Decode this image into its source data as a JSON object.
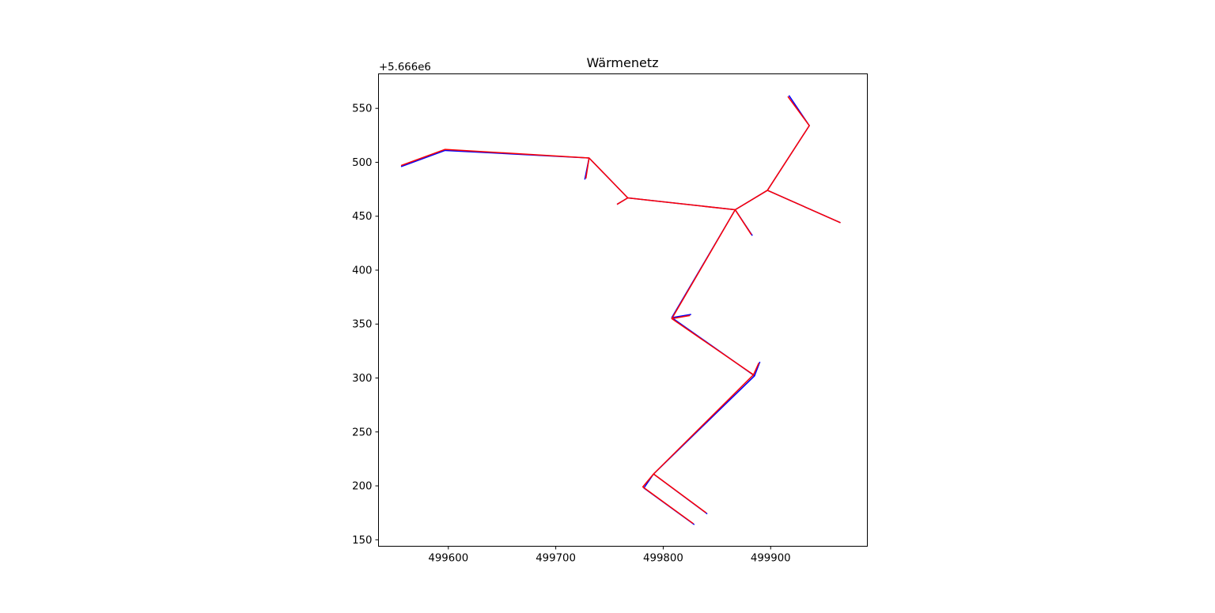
{
  "chart_data": {
    "type": "line",
    "title": "Wärmenetz",
    "xlabel": "",
    "ylabel": "",
    "y_offset_label": "+5.666e6",
    "xlim": [
      499535,
      499990
    ],
    "ylim": [
      144,
      582
    ],
    "x_ticks": [
      {
        "value": 499600,
        "label": "499600"
      },
      {
        "value": 499700,
        "label": "499700"
      },
      {
        "value": 499800,
        "label": "499800"
      },
      {
        "value": 499900,
        "label": "499900"
      }
    ],
    "y_ticks": [
      {
        "value": 150,
        "label": "150"
      },
      {
        "value": 200,
        "label": "200"
      },
      {
        "value": 250,
        "label": "250"
      },
      {
        "value": 300,
        "label": "300"
      },
      {
        "value": 350,
        "label": "350"
      },
      {
        "value": 400,
        "label": "400"
      },
      {
        "value": 450,
        "label": "450"
      },
      {
        "value": 500,
        "label": "500"
      },
      {
        "value": 550,
        "label": "550"
      }
    ],
    "grid": false,
    "series": [
      {
        "color": "#0000ff",
        "segments": [
          [
            [
              499556,
              496
            ],
            [
              499597,
              511
            ],
            [
              499731,
              504
            ],
            [
              499767,
              467
            ],
            [
              499867,
              456
            ]
          ],
          [
            [
              499731,
              504
            ],
            [
              499727,
              484
            ]
          ],
          [
            [
              499767,
              467
            ],
            [
              499757,
              461
            ]
          ],
          [
            [
              499867,
              456
            ],
            [
              499883,
              432
            ]
          ],
          [
            [
              499867,
              456
            ],
            [
              499897,
              474
            ],
            [
              499936,
              534
            ],
            [
              499917,
              562
            ]
          ],
          [
            [
              499897,
              474
            ],
            [
              499965,
              444
            ]
          ],
          [
            [
              499867,
              456
            ],
            [
              499808,
              356
            ],
            [
              499885,
              302
            ],
            [
              499791,
              211
            ],
            [
              499782,
              198
            ],
            [
              499829,
              164
            ]
          ],
          [
            [
              499808,
              356
            ],
            [
              499826,
              359
            ]
          ],
          [
            [
              499885,
              302
            ],
            [
              499890,
              315
            ]
          ],
          [
            [
              499791,
              211
            ],
            [
              499841,
              174
            ]
          ]
        ]
      },
      {
        "color": "#ff0000",
        "segments": [
          [
            [
              499556,
              497
            ],
            [
              499597,
              512
            ],
            [
              499731,
              504
            ],
            [
              499767,
              467
            ],
            [
              499867,
              456
            ]
          ],
          [
            [
              499731,
              504
            ],
            [
              499728,
              485
            ]
          ],
          [
            [
              499767,
              467
            ],
            [
              499757,
              461
            ]
          ],
          [
            [
              499867,
              456
            ],
            [
              499882,
              433
            ]
          ],
          [
            [
              499867,
              456
            ],
            [
              499897,
              474
            ],
            [
              499936,
              534
            ],
            [
              499916,
              561
            ]
          ],
          [
            [
              499897,
              474
            ],
            [
              499965,
              444
            ]
          ],
          [
            [
              499867,
              456
            ],
            [
              499808,
              355
            ],
            [
              499884,
              303
            ],
            [
              499791,
              211
            ],
            [
              499781,
              199
            ],
            [
              499828,
              165
            ]
          ],
          [
            [
              499808,
              355
            ],
            [
              499825,
              358
            ]
          ],
          [
            [
              499884,
              303
            ],
            [
              499889,
              314
            ]
          ],
          [
            [
              499791,
              211
            ],
            [
              499840,
              175
            ]
          ]
        ]
      }
    ]
  }
}
